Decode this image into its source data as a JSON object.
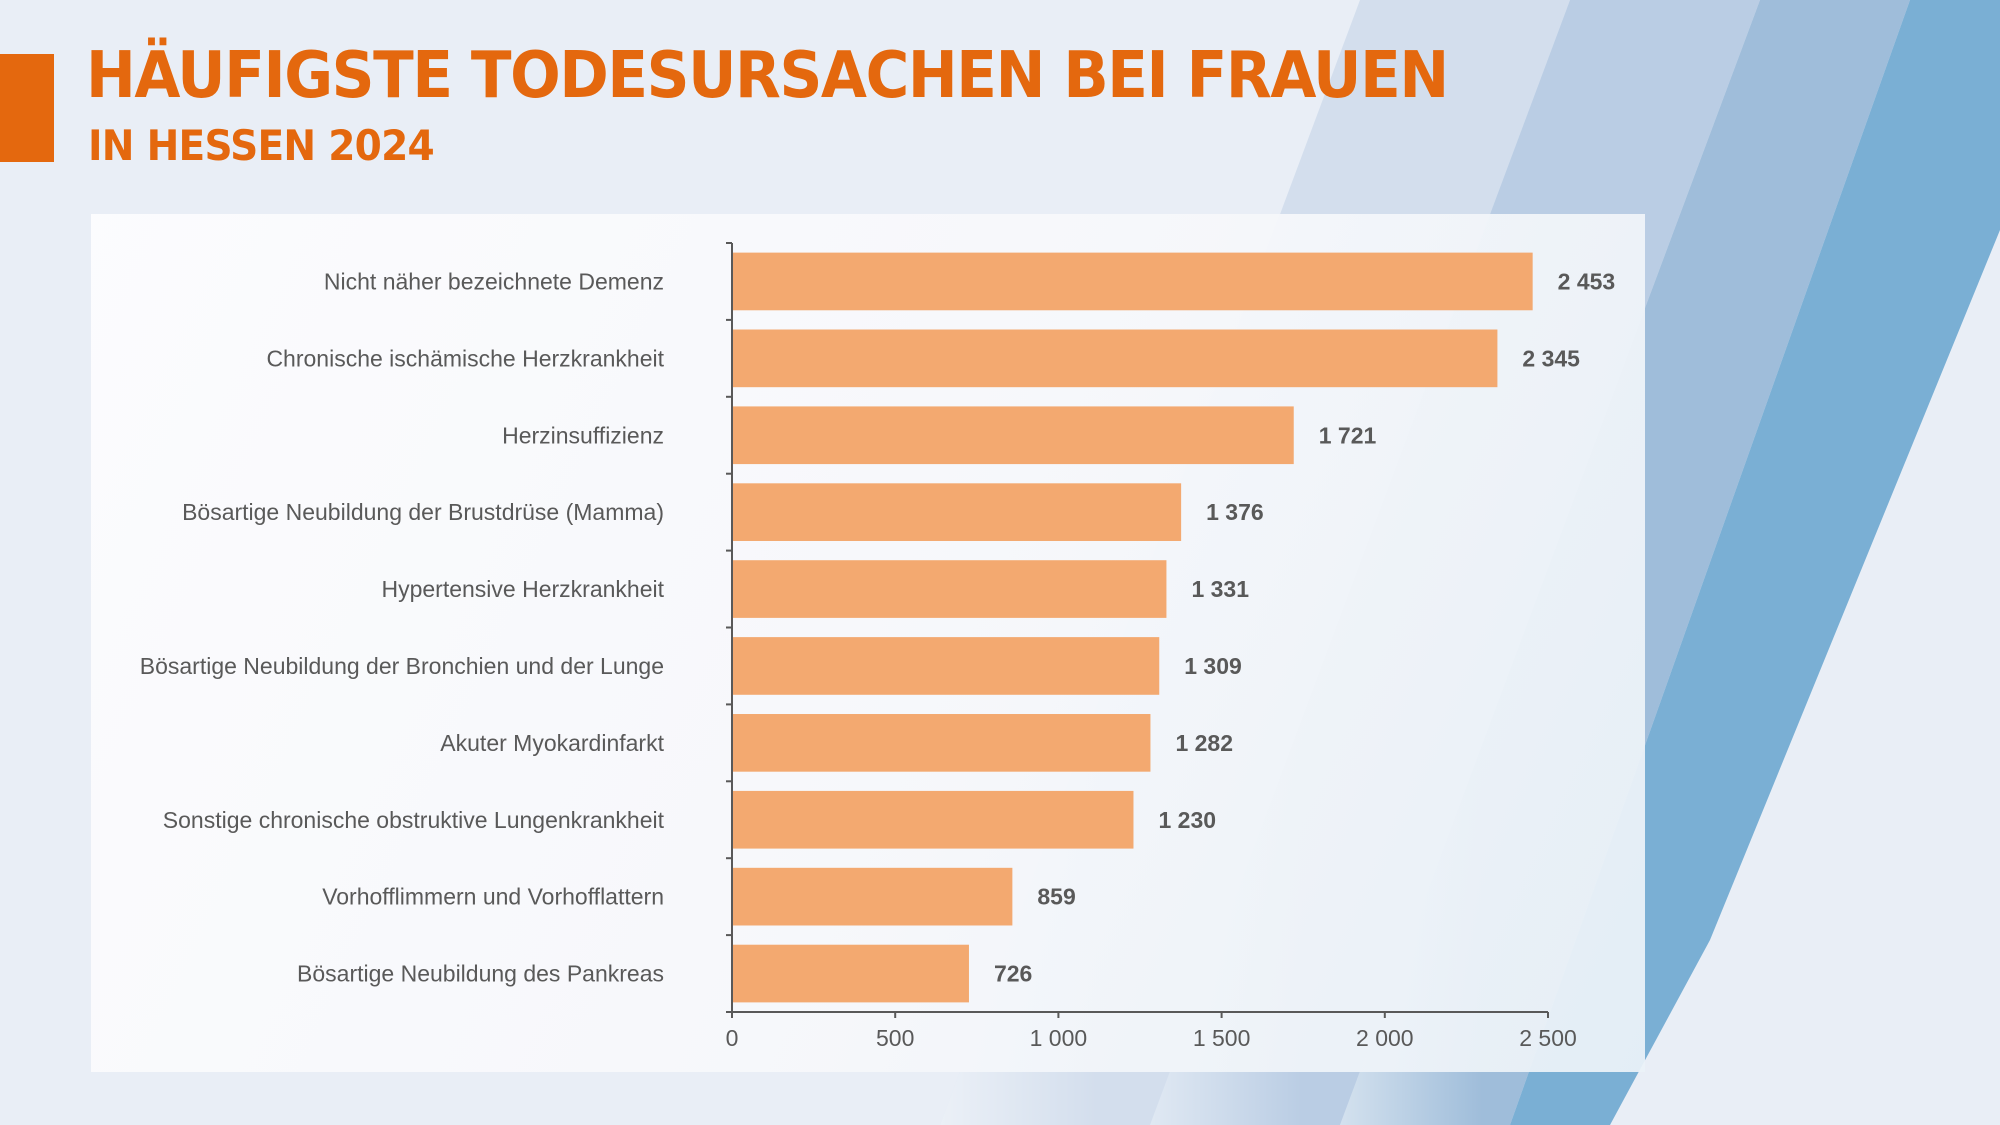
{
  "header": {
    "title": "HÄUFIGSTE TODESURSACHEN BEI FRAUEN",
    "subtitle": "IN HESSEN 2024"
  },
  "colors": {
    "accent": "#e4680e",
    "bar": "#f3a970",
    "text": "#595959",
    "axis": "#595959",
    "background": "#e9eef6",
    "stripes": [
      "#d3deed",
      "#bacde4",
      "#9fbdda",
      "#7aafd4"
    ]
  },
  "chart_data": {
    "type": "bar",
    "orientation": "horizontal",
    "title": "Häufigste Todesursachen bei Frauen in Hessen 2024",
    "xlabel": "",
    "ylabel": "",
    "categories": [
      "Nicht näher bezeichnete Demenz",
      "Chronische ischämische Herzkrankheit",
      "Herzinsuffizienz",
      "Bösartige Neubildung der Brustdrüse (Mamma)",
      "Hypertensive Herzkrankheit",
      "Bösartige Neubildung der Bronchien und der Lunge",
      "Akuter Myokardinfarkt",
      "Sonstige chronische obstruktive Lungenkrankheit",
      "Vorhofflimmern und Vorhofflattern",
      "Bösartige Neubildung des Pankreas"
    ],
    "values": [
      2453,
      2345,
      1721,
      1376,
      1331,
      1309,
      1282,
      1230,
      859,
      726
    ],
    "data_labels": [
      "2 453",
      "2 345",
      "1 721",
      "1 376",
      "1 331",
      "1 309",
      "1 282",
      "1 230",
      "859",
      "726"
    ],
    "xlim": [
      0,
      2500
    ],
    "x_ticks": [
      0,
      500,
      1000,
      1500,
      2000,
      2500
    ],
    "x_tick_labels": [
      "0",
      "500",
      "1 000",
      "1 500",
      "2 000",
      "2 500"
    ],
    "grid": false,
    "legend": "none"
  }
}
